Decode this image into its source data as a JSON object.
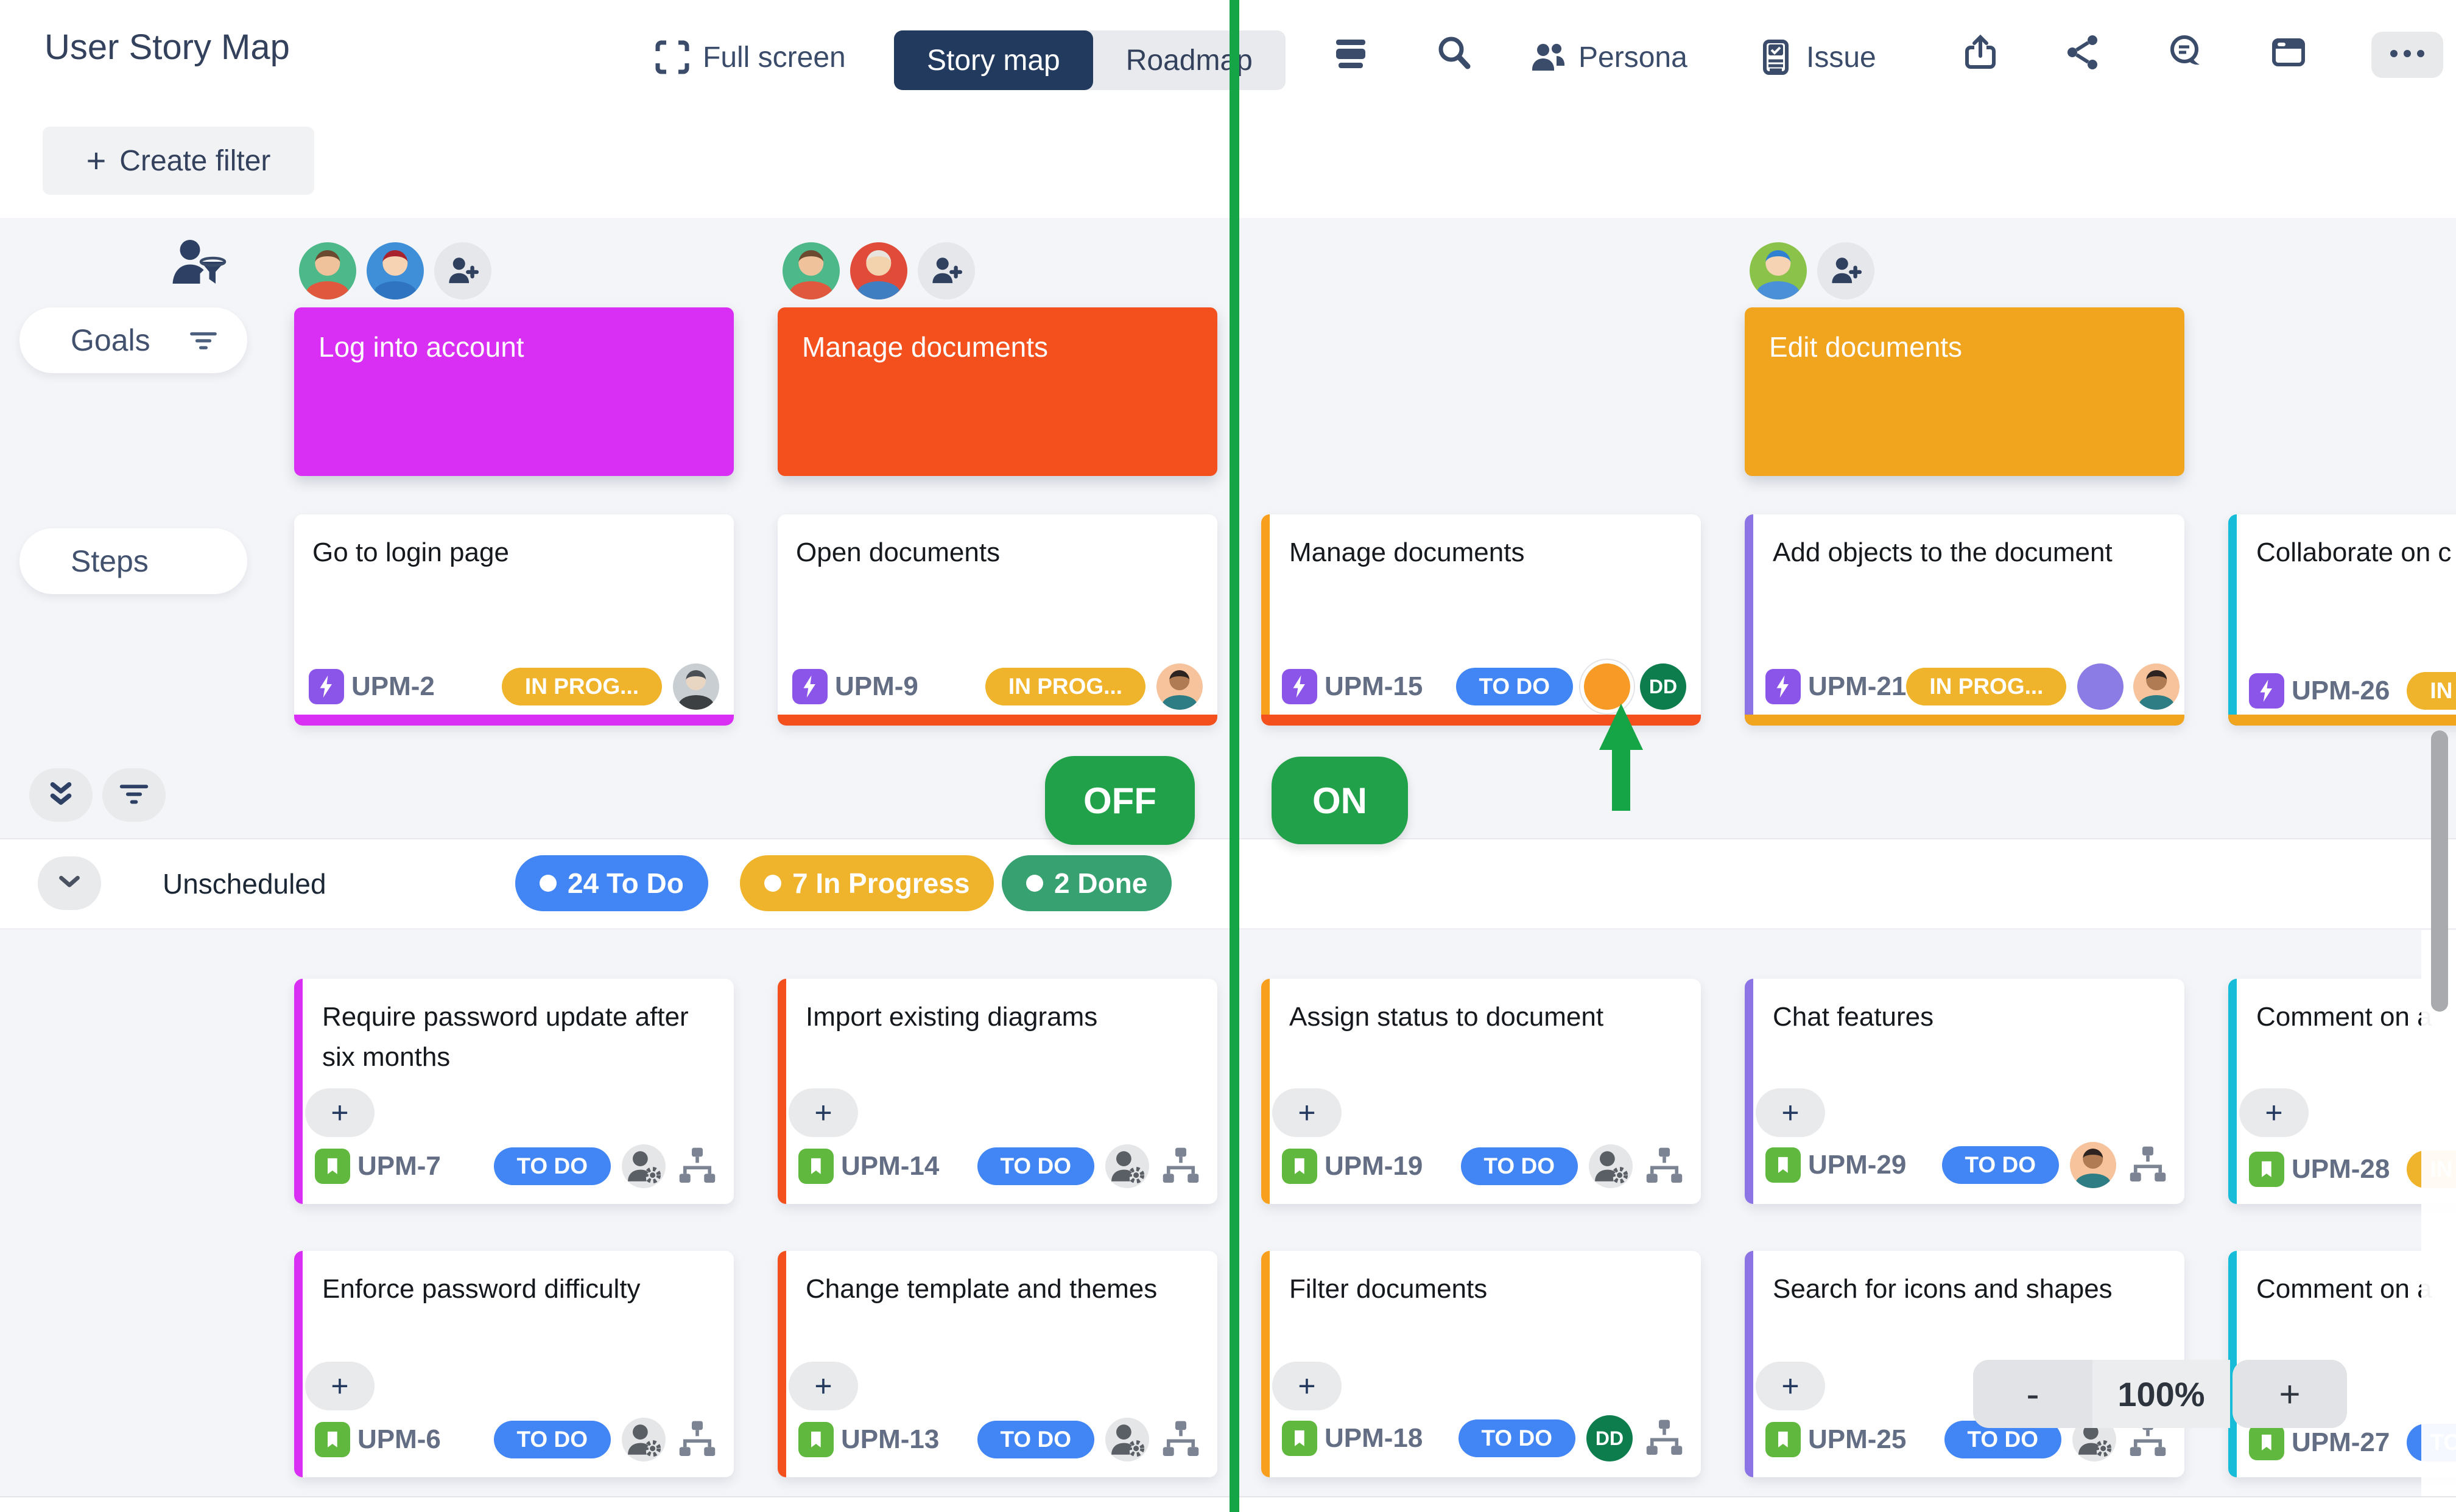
{
  "header": {
    "title": "User Story Map",
    "full_screen": "Full screen",
    "tabs": [
      {
        "label": "Story map",
        "active": true
      },
      {
        "label": "Roadmap",
        "active": false
      }
    ],
    "persona": "Persona",
    "issue": "Issue",
    "create_filter_plus": "+",
    "create_filter": "Create filter",
    "toolbar_icons": [
      "fullscreen-icon",
      "rows-icon",
      "search-icon",
      "persona-icon",
      "issue-icon",
      "export-icon",
      "share-icon",
      "comment-icon",
      "board-icon",
      "more-icon"
    ]
  },
  "sidebar": {
    "goals": "Goals",
    "steps": "Steps",
    "icons": [
      "persona-filter-icon",
      "filter-icon",
      "collapse-all-icon"
    ]
  },
  "toggles": {
    "off": "OFF",
    "on": "ON"
  },
  "unscheduled": {
    "label": "Unscheduled",
    "badges": [
      {
        "label": "24 To Do",
        "color": "#4285f4"
      },
      {
        "label": "7 In Progress",
        "color": "#f0b42c"
      },
      {
        "label": "2 Done",
        "color": "#37a171"
      }
    ]
  },
  "zoom_control": {
    "minus": "-",
    "level": "100%",
    "plus": "+"
  },
  "story_meta": {
    "plus": "+"
  },
  "colors": {
    "brand_navy": "#223a5e",
    "green_annotation": "#16a546",
    "toggle_green": "#21a24a",
    "goal_magenta": "#d92ef3",
    "goal_orange_red": "#f4501e",
    "goal_amber": "#f1a51f",
    "accent_orange": "#f8a01d",
    "accent_purple": "#8d74e4",
    "accent_cyan": "#16bcd8",
    "status_todo_blue": "#4285f4",
    "status_inprogress_yellow": "#f0b42c",
    "epic_purple": "#8a55e8",
    "story_green": "#60b93e",
    "board_bg": "#f4f5f8"
  },
  "goal_columns": [
    {
      "col": 0,
      "avatars": [
        "man-green",
        "woman-blue",
        "add-person"
      ],
      "card": {
        "title": "Log into account",
        "color": "#d92ef3"
      }
    },
    {
      "col": 1,
      "avatars": [
        "man-green",
        "oldman-red",
        "add-person"
      ],
      "card": {
        "title": "Manage documents",
        "color": "#f4501e"
      }
    },
    {
      "col": 3,
      "avatars": [
        "woman-cap-green",
        "add-person"
      ],
      "card": {
        "title": "Edit documents",
        "color": "#f1a51f"
      }
    }
  ],
  "step_cards": [
    {
      "col": 0,
      "title": "Go to login page",
      "key": "UPM-2",
      "status": {
        "label": "IN PROG...",
        "color": "#f0b42c"
      },
      "bottom": "#d92ef3",
      "trailing": [
        {
          "type": "avatar",
          "variant": "photo-man"
        }
      ]
    },
    {
      "col": 1,
      "title": "Open documents",
      "key": "UPM-9",
      "status": {
        "label": "IN PROG...",
        "color": "#f0b42c"
      },
      "bottom": "#f4501e",
      "trailing": [
        {
          "type": "avatar",
          "variant": "man-peach"
        }
      ]
    },
    {
      "col": 2,
      "title": "Manage documents",
      "key": "UPM-15",
      "status": {
        "label": "TO DO",
        "color": "#4285f4"
      },
      "accent": "#f8a01d",
      "bottom": "#f4501e",
      "trailing": [
        {
          "type": "dot",
          "color": "#f79b26",
          "ring": true
        },
        {
          "type": "initials",
          "label": "DD",
          "color": "#0d7d4d"
        }
      ]
    },
    {
      "col": 3,
      "title": "Add objects to the document",
      "key": "UPM-21",
      "status": {
        "label": "IN PROG...",
        "color": "#f0b42c"
      },
      "accent": "#8d74e4",
      "bottom": "#f1a51f",
      "trailing": [
        {
          "type": "dot",
          "color": "#8b7be4"
        },
        {
          "type": "avatar",
          "variant": "man-peach"
        }
      ]
    },
    {
      "col": 4,
      "title": "Collaborate on c",
      "key": "UPM-26",
      "status": {
        "label": "IN PROG...",
        "color": "#f0b42c"
      },
      "accent": "#16bcd8",
      "bottom": "#f1a51f",
      "trailing": []
    }
  ],
  "story_rows": [
    [
      {
        "col": 0,
        "title": "Require password update after six months",
        "key": "UPM-7",
        "status": {
          "label": "TO DO",
          "color": "#4285f4"
        },
        "accent": "#d92ef3",
        "trailing": [
          {
            "type": "icon",
            "name": "assignee"
          },
          {
            "type": "icon",
            "name": "hierarchy"
          }
        ]
      },
      {
        "col": 1,
        "title": "Import existing diagrams",
        "key": "UPM-14",
        "status": {
          "label": "TO DO",
          "color": "#4285f4"
        },
        "accent": "#f4501e",
        "trailing": [
          {
            "type": "icon",
            "name": "assignee"
          },
          {
            "type": "icon",
            "name": "hierarchy"
          }
        ]
      },
      {
        "col": 2,
        "title": "Assign status to document",
        "key": "UPM-19",
        "status": {
          "label": "TO DO",
          "color": "#4285f4"
        },
        "accent": "#f8a01d",
        "trailing": [
          {
            "type": "icon",
            "name": "assignee"
          },
          {
            "type": "icon",
            "name": "hierarchy"
          }
        ]
      },
      {
        "col": 3,
        "title": "Chat features",
        "key": "UPM-29",
        "status": {
          "label": "TO DO",
          "color": "#4285f4"
        },
        "accent": "#8d74e4",
        "trailing": [
          {
            "type": "avatar",
            "variant": "man-peach"
          },
          {
            "type": "icon",
            "name": "hierarchy"
          }
        ]
      },
      {
        "col": 4,
        "title": "Comment on a",
        "key": "UPM-28",
        "status": {
          "label": "IN PROG...",
          "color": "#f0b42c"
        },
        "accent": "#16bcd8",
        "trailing": []
      }
    ],
    [
      {
        "col": 0,
        "title": "Enforce password difficulty",
        "key": "UPM-6",
        "status": {
          "label": "TO DO",
          "color": "#4285f4"
        },
        "accent": "#d92ef3",
        "trailing": [
          {
            "type": "icon",
            "name": "assignee"
          },
          {
            "type": "icon",
            "name": "hierarchy"
          }
        ]
      },
      {
        "col": 1,
        "title": "Change template and themes",
        "key": "UPM-13",
        "status": {
          "label": "TO DO",
          "color": "#4285f4"
        },
        "accent": "#f4501e",
        "trailing": [
          {
            "type": "icon",
            "name": "assignee"
          },
          {
            "type": "icon",
            "name": "hierarchy"
          }
        ]
      },
      {
        "col": 2,
        "title": "Filter documents",
        "key": "UPM-18",
        "status": {
          "label": "TO DO",
          "color": "#4285f4"
        },
        "accent": "#f8a01d",
        "trailing": [
          {
            "type": "initials",
            "label": "DD",
            "color": "#0d7d4d"
          },
          {
            "type": "icon",
            "name": "hierarchy"
          }
        ]
      },
      {
        "col": 3,
        "title": "Search for icons and shapes",
        "key": "UPM-25",
        "status": {
          "label": "TO DO",
          "color": "#4285f4"
        },
        "accent": "#8d74e4",
        "trailing": [
          {
            "type": "icon",
            "name": "assignee"
          },
          {
            "type": "icon",
            "name": "hierarchy"
          }
        ]
      },
      {
        "col": 4,
        "title": "Comment on a",
        "key": "UPM-27",
        "status": {
          "label": "TO DO",
          "color": "#4285f4"
        },
        "accent": "#16bcd8",
        "trailing": []
      }
    ]
  ]
}
